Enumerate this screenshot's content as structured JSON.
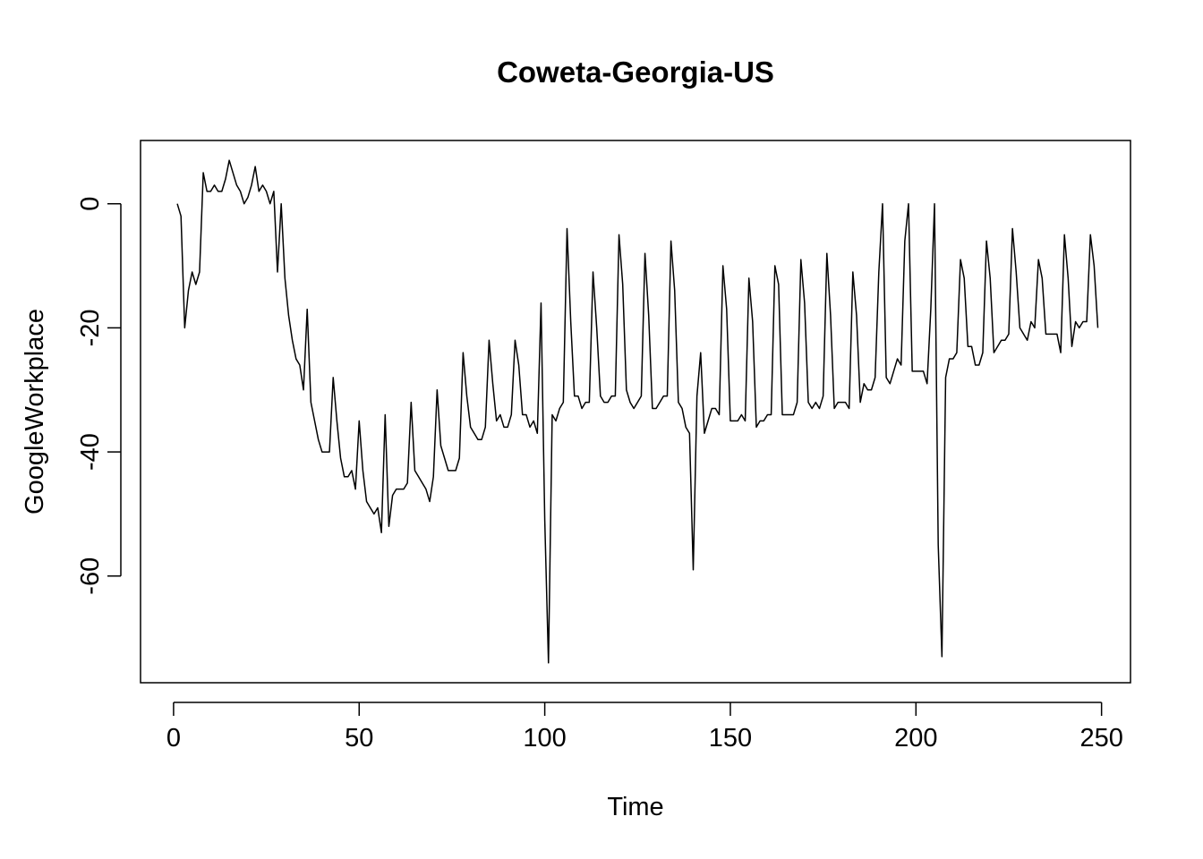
{
  "chart_data": {
    "type": "line",
    "title": "Coweta-Georgia-US",
    "xlabel": "Time",
    "ylabel": "GoogleWorkplace",
    "xlim": [
      -8.9,
      257.8
    ],
    "ylim": [
      -77.2,
      10.2
    ],
    "x_ticks": [
      0,
      50,
      100,
      150,
      200,
      250
    ],
    "y_ticks": [
      0,
      -20,
      -40,
      -60
    ],
    "x_tick_labels": [
      "0",
      "50",
      "100",
      "150",
      "200",
      "250"
    ],
    "y_tick_labels": [
      "0",
      "-20",
      "-40",
      "-60"
    ],
    "grid": false,
    "box": true,
    "line_color": "#000000",
    "series": [
      {
        "x_start": 1,
        "x_step": 1,
        "values": [
          0,
          -2,
          -20,
          -14,
          -11,
          -13,
          -11,
          5,
          2,
          2,
          3,
          2,
          2,
          4,
          7,
          5,
          3,
          2,
          0,
          1,
          3,
          6,
          2,
          3,
          2,
          0,
          2,
          -11,
          0,
          -12,
          -18,
          -22,
          -25,
          -26,
          -30,
          -17,
          -32,
          -35,
          -38,
          -40,
          -40,
          -40,
          -28,
          -35,
          -41,
          -44,
          -44,
          -43,
          -46,
          -35,
          -43,
          -48,
          -49,
          -50,
          -49,
          -53,
          -34,
          -52,
          -47,
          -46,
          -46,
          -46,
          -45,
          -32,
          -43,
          -44,
          -45,
          -46,
          -48,
          -44,
          -30,
          -39,
          -41,
          -43,
          -43,
          -43,
          -41,
          -24,
          -31,
          -36,
          -37,
          -38,
          -38,
          -36,
          -22,
          -29,
          -35,
          -34,
          -36,
          -36,
          -34,
          -22,
          -26,
          -34,
          -34,
          -36,
          -35,
          -37,
          -16,
          -51,
          -74,
          -34,
          -35,
          -33,
          -32,
          -4,
          -19,
          -31,
          -31,
          -33,
          -32,
          -32,
          -11,
          -20,
          -31,
          -32,
          -32,
          -31,
          -31,
          -5,
          -13,
          -30,
          -32,
          -33,
          -32,
          -31,
          -8,
          -18,
          -33,
          -33,
          -32,
          -31,
          -31,
          -6,
          -14,
          -32,
          -33,
          -36,
          -37,
          -59,
          -31,
          -24,
          -37,
          -35,
          -33,
          -33,
          -34,
          -10,
          -17,
          -35,
          -35,
          -35,
          -34,
          -35,
          -12,
          -19,
          -36,
          -35,
          -35,
          -34,
          -34,
          -10,
          -13,
          -34,
          -34,
          -34,
          -34,
          -32,
          -9,
          -16,
          -32,
          -33,
          -32,
          -33,
          -31,
          -8,
          -18,
          -33,
          -32,
          -32,
          -32,
          -33,
          -11,
          -18,
          -32,
          -29,
          -30,
          -30,
          -28,
          -11,
          0,
          -28,
          -29,
          -27,
          -25,
          -26,
          -6,
          0,
          -27,
          -27,
          -27,
          -27,
          -29,
          -17,
          0,
          -55,
          -73,
          -28,
          -25,
          -25,
          -24,
          -9,
          -12,
          -23,
          -23,
          -26,
          -26,
          -24,
          -6,
          -12,
          -24,
          -23,
          -22,
          -22,
          -21,
          -4,
          -11,
          -20,
          -21,
          -22,
          -19,
          -20,
          -9,
          -12,
          -21,
          -21,
          -21,
          -21,
          -24,
          -5,
          -12,
          -23,
          -19,
          -20,
          -19,
          -19,
          -5,
          -10,
          -20
        ]
      }
    ]
  }
}
